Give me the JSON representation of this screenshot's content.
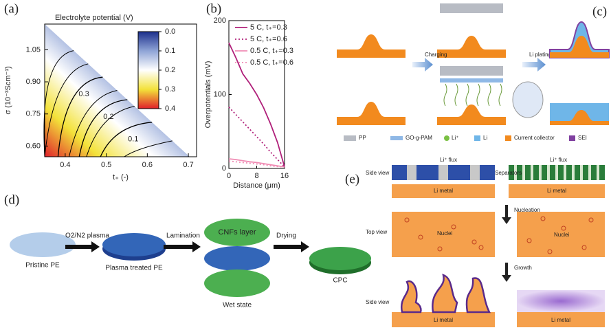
{
  "chart_data": [
    {
      "type": "contour",
      "label": "(a)",
      "title": "Electrolyte potential (V)",
      "xlabel": "t₊ (-)",
      "ylabel": "σ (10⁻³Scm⁻¹)",
      "xlim": [
        0.35,
        0.72
      ],
      "ylim": [
        0.55,
        1.17
      ],
      "xticks": [
        0.4,
        0.5,
        0.6,
        0.7
      ],
      "yticks": [
        {
          "value": 0.6,
          "label": "0.60"
        },
        {
          "value": 0.75,
          "label": "0.75"
        },
        {
          "value": 0.9,
          "label": "0.90"
        },
        {
          "value": 1.05,
          "label": "1.05"
        }
      ],
      "clim": [
        0,
        0.4
      ],
      "cticks": [
        {
          "value": 0,
          "label": "0.0"
        },
        0.1,
        0.2,
        0.3,
        0.4
      ],
      "colors": [
        "#1c2f8c",
        "#8fa4d6",
        "#ffffff",
        "#f3e23a",
        "#e0202a"
      ],
      "contours": [
        0.1,
        0.2,
        0.3
      ]
    },
    {
      "type": "line",
      "label": "(b)",
      "xlabel": "Distance (μm)",
      "ylabel": "Overpotentials (mV)",
      "xlim": [
        0,
        16
      ],
      "ylim": [
        0,
        200
      ],
      "xticks": [
        0,
        8,
        16
      ],
      "yticks": [
        0,
        100,
        200
      ],
      "x": [
        0,
        2,
        4,
        6,
        8,
        10,
        12,
        14,
        16
      ],
      "series": [
        {
          "name": "5 C, t₊=0.3",
          "color": "#b0207a",
          "style": "solid",
          "values": [
            170,
            150,
            128,
            115,
            100,
            82,
            60,
            35,
            2
          ]
        },
        {
          "name": "5 C, t₊=0.6",
          "color": "#b0207a",
          "style": "dotted",
          "values": [
            83,
            73,
            63,
            53,
            43,
            33,
            22,
            12,
            2
          ]
        },
        {
          "name": "0.5 C, t₊=0.3",
          "color": "#f08cb4",
          "style": "solid",
          "values": [
            13,
            12,
            10.5,
            9,
            8,
            6.5,
            5,
            3.5,
            2
          ]
        },
        {
          "name": "0.5 C, t₊=0.6",
          "color": "#f08cb4",
          "style": "dotted",
          "values": [
            10,
            9,
            8,
            7,
            6,
            5,
            3.5,
            2.5,
            2
          ]
        }
      ]
    }
  ],
  "panel_c": {
    "label": "(c)",
    "arrows": [
      "Charging",
      "Li plating"
    ],
    "legend": [
      "PP",
      "GO-g-PAM",
      "Li⁺",
      "Li",
      "Current collector",
      "SEI"
    ]
  },
  "panel_d": {
    "label": "(d)",
    "steps": [
      "O2/N2 plasma",
      "Lamination",
      "Drying"
    ],
    "stages": [
      "Pristine PE",
      "Plasma treated PE",
      "Wet state",
      "CPC"
    ],
    "layer": "CNFs layer"
  },
  "panel_e": {
    "label": "(e)",
    "flux": [
      "Li⁺ flux",
      "Li⁺ flux"
    ],
    "views": [
      "Side view",
      "Top view",
      "Side view"
    ],
    "separators": "Separators",
    "metal": [
      "Li metal",
      "Li metal",
      "Li metal",
      "Li metal"
    ],
    "steps": [
      "Nucleation",
      "Growth"
    ],
    "nuclei": [
      "Nuclei",
      "Nuclei"
    ]
  }
}
